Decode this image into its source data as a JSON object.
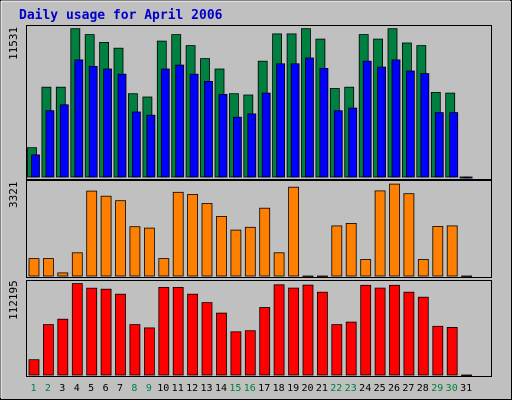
{
  "chart": {
    "title": "Daily usage for April 2006",
    "panel1_ymax_label": "11531",
    "panel2_ymax_label": "3321",
    "panel3_ymax_label": "112195"
  },
  "colors": {
    "background": "#c0c0c0",
    "title_text": "#0000cc",
    "weekday_text": "#000000",
    "weekend_text": "#008040",
    "series_hits": "#008040",
    "series_files": "#0000ff",
    "series_sites": "#ff8000",
    "series_kbytes": "#ff0000"
  },
  "chart_data": {
    "type": "bar",
    "title": "Daily usage for April 2006",
    "categories": [
      "1",
      "2",
      "3",
      "4",
      "5",
      "6",
      "7",
      "8",
      "9",
      "10",
      "11",
      "12",
      "13",
      "14",
      "15",
      "16",
      "17",
      "18",
      "19",
      "20",
      "21",
      "22",
      "23",
      "24",
      "25",
      "26",
      "27",
      "28",
      "29",
      "30",
      "31"
    ],
    "weekend_days": [
      "1",
      "2",
      "8",
      "9",
      "15",
      "16",
      "22",
      "23",
      "29",
      "30"
    ],
    "panels": [
      {
        "ymax_label": "11531",
        "ylim": [
          0,
          11531
        ],
        "series": [
          {
            "values": [
              2250,
              6900,
              6900,
              11400,
              10950,
              10350,
              9900,
              6400,
              6150,
              10450,
              10950,
              10100,
              9100,
              8300,
              6400,
              6300,
              8900,
              11000,
              11000,
              11400,
              10600,
              6800,
              6900,
              10950,
              10600,
              11400,
              10300,
              10100,
              6500,
              6450,
              0
            ]
          },
          {
            "values": [
              1700,
              5100,
              5550,
              9000,
              8500,
              8300,
              7900,
              5000,
              4750,
              8300,
              8600,
              7900,
              7350,
              6350,
              4600,
              4850,
              6450,
              8700,
              8700,
              9150,
              8350,
              5100,
              5300,
              8900,
              8450,
              9000,
              8150,
              7950,
              4950,
              4950,
              0
            ]
          }
        ]
      },
      {
        "ymax_label": "3321",
        "ylim": [
          0,
          3321
        ],
        "series": [
          {
            "values": [
              620,
              620,
              110,
              830,
              3030,
              2850,
              2690,
              1760,
              1710,
              620,
              2990,
              2910,
              2590,
              2130,
              1640,
              1740,
              2420,
              830,
              3170,
              0,
              0,
              1790,
              1880,
              590,
              3040,
              3280,
              2940,
              590,
              1770,
              1790,
              0
            ]
          }
        ]
      },
      {
        "ymax_label": "112195",
        "ylim": [
          0,
          112195
        ],
        "series": [
          {
            "values": [
              18700,
              61500,
              68000,
              111500,
              105900,
              104600,
              98500,
              61500,
              57400,
              106800,
              106800,
              98500,
              88300,
              75500,
              52700,
              54000,
              82300,
              110000,
              106000,
              109600,
              101000,
              61500,
              64500,
              109400,
              106000,
              109400,
              101000,
              94900,
              59400,
              58000,
              0
            ]
          }
        ]
      }
    ]
  }
}
